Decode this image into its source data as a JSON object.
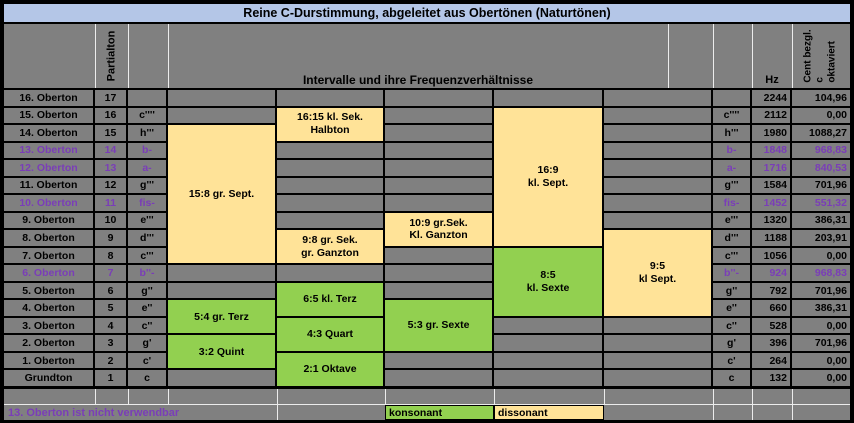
{
  "title": "Reine C-Durstimmung, abgeleitet aus Obertönen (Naturtönen)",
  "header": {
    "partialton_label": "Partialton",
    "intervals_label": "Intervalle und ihre Frequenzverhältnisse",
    "hz_label": "Hz",
    "cent_lines": [
      "Cent bezgl.",
      "c",
      "oktaviert"
    ]
  },
  "colors": {
    "title_bar_blue": "#B4C6E7",
    "grid_gray": "#808080",
    "consonant_green": "#92D050",
    "dissonant_yellow": "#FFE398",
    "unusable_purple": "#7A3DB8"
  },
  "rows": [
    {
      "label": "16. Oberton",
      "partial": "17",
      "note_left": "",
      "note_right": "",
      "hz": "2244",
      "cent": "104,96",
      "unusable": false
    },
    {
      "label": "15. Oberton",
      "partial": "16",
      "note_left": "c''''",
      "note_right": "c''''",
      "hz": "2112",
      "cent": "0,00",
      "unusable": false
    },
    {
      "label": "14. Oberton",
      "partial": "15",
      "note_left": "h'''",
      "note_right": "h'''",
      "hz": "1980",
      "cent": "1088,27",
      "unusable": false
    },
    {
      "label": "13. Oberton",
      "partial": "14",
      "note_left": "b-",
      "note_right": "b-",
      "hz": "1848",
      "cent": "968,83",
      "unusable": true
    },
    {
      "label": "12. Oberton",
      "partial": "13",
      "note_left": "a-",
      "note_right": "a-",
      "hz": "1716",
      "cent": "840,53",
      "unusable": true
    },
    {
      "label": "11. Oberton",
      "partial": "12",
      "note_left": "g'''",
      "note_right": "g'''",
      "hz": "1584",
      "cent": "701,96",
      "unusable": false
    },
    {
      "label": "10. Oberton",
      "partial": "11",
      "note_left": "fis-",
      "note_right": "fis-",
      "hz": "1452",
      "cent": "551,32",
      "unusable": true
    },
    {
      "label": "9. Oberton",
      "partial": "10",
      "note_left": "e'''",
      "note_right": "e'''",
      "hz": "1320",
      "cent": "386,31",
      "unusable": false
    },
    {
      "label": "8. Oberton",
      "partial": "9",
      "note_left": "d'''",
      "note_right": "d'''",
      "hz": "1188",
      "cent": "203,91",
      "unusable": false
    },
    {
      "label": "7. Oberton",
      "partial": "8",
      "note_left": "c'''",
      "note_right": "c'''",
      "hz": "1056",
      "cent": "0,00",
      "unusable": false
    },
    {
      "label": "6. Oberton",
      "partial": "7",
      "note_left": "b''-",
      "note_right": "b''-",
      "hz": "924",
      "cent": "968,83",
      "unusable": true
    },
    {
      "label": "5. Oberton",
      "partial": "6",
      "note_left": "g''",
      "note_right": "g''",
      "hz": "792",
      "cent": "701,96",
      "unusable": false
    },
    {
      "label": "4. Oberton",
      "partial": "5",
      "note_left": "e''",
      "note_right": "e''",
      "hz": "660",
      "cent": "386,31",
      "unusable": false
    },
    {
      "label": "3. Oberton",
      "partial": "4",
      "note_left": "c''",
      "note_right": "c''",
      "hz": "528",
      "cent": "0,00",
      "unusable": false
    },
    {
      "label": "2. Oberton",
      "partial": "3",
      "note_left": "g'",
      "note_right": "g'",
      "hz": "396",
      "cent": "701,96",
      "unusable": false
    },
    {
      "label": "1. Oberton",
      "partial": "2",
      "note_left": "c'",
      "note_right": "c'",
      "hz": "264",
      "cent": "0,00",
      "unusable": false
    },
    {
      "label": "Grundton",
      "partial": "1",
      "note_left": "c",
      "note_right": "c",
      "hz": "132",
      "cent": "0,00",
      "unusable": false
    }
  ],
  "intervals": [
    {
      "col": 4,
      "row": 3,
      "span": 8,
      "lines": [
        "15:8 gr. Sept."
      ],
      "tone": "dissonant"
    },
    {
      "col": 4,
      "row": 13,
      "span": 2,
      "lines": [
        "5:4 gr. Terz"
      ],
      "tone": "konsonant"
    },
    {
      "col": 4,
      "row": 15,
      "span": 2,
      "lines": [
        "3:2 Quint"
      ],
      "tone": "konsonant"
    },
    {
      "col": 5,
      "row": 2,
      "span": 2,
      "lines": [
        "16:15 kl. Sek.",
        "Halbton"
      ],
      "tone": "dissonant"
    },
    {
      "col": 5,
      "row": 9,
      "span": 2,
      "lines": [
        "9:8 gr. Sek.",
        "gr. Ganzton"
      ],
      "tone": "dissonant"
    },
    {
      "col": 5,
      "row": 12,
      "span": 2,
      "lines": [
        "6:5 kl. Terz"
      ],
      "tone": "konsonant"
    },
    {
      "col": 5,
      "row": 14,
      "span": 2,
      "lines": [
        "4:3 Quart"
      ],
      "tone": "konsonant"
    },
    {
      "col": 5,
      "row": 16,
      "span": 2,
      "lines": [
        "2:1 Oktave"
      ],
      "tone": "konsonant"
    },
    {
      "col": 6,
      "row": 8,
      "span": 2,
      "lines": [
        "10:9 gr.Sek.",
        "Kl. Ganzton"
      ],
      "tone": "dissonant"
    },
    {
      "col": 6,
      "row": 13,
      "span": 3,
      "lines": [
        "5:3 gr. Sexte"
      ],
      "tone": "konsonant"
    },
    {
      "col": 7,
      "row": 2,
      "span": 8,
      "lines": [
        "16:9",
        "kl. Sept."
      ],
      "tone": "dissonant"
    },
    {
      "col": 7,
      "row": 10,
      "span": 4,
      "lines": [
        "8:5",
        "kl. Sexte"
      ],
      "tone": "konsonant"
    },
    {
      "col": 8,
      "row": 9,
      "span": 5,
      "lines": [
        "9:5",
        "kl Sept."
      ],
      "tone": "dissonant"
    }
  ],
  "legend": {
    "note": "13. Oberton ist nicht verwendbar",
    "consonant_label": "konsonant",
    "dissonant_label": "dissonant"
  }
}
